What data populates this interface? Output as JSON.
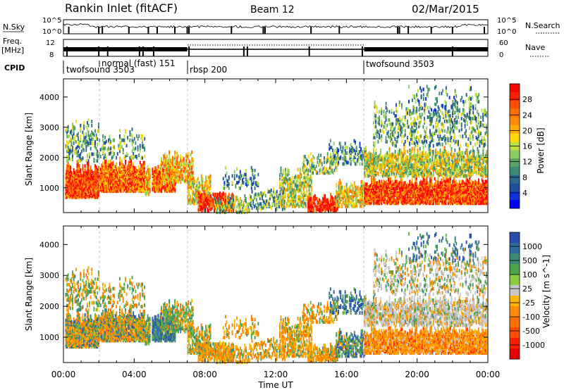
{
  "header": {
    "radar": "Rankin Inlet (fitACF)",
    "beam": "Beam 12",
    "date": "02/Mar/2015"
  },
  "status": {
    "nsky_label": "N.Sky",
    "nsky_ticks": [
      "10^5",
      "10^0"
    ],
    "nsky_right_ticks": [
      "10^5",
      "10^0"
    ],
    "nsearch_label": "N.Search",
    "freq_label": "Freq.",
    "freq_unit": "[MHz]",
    "freq_ticks": [
      "12",
      "8"
    ],
    "nave_ticks": [
      "60",
      "0"
    ],
    "nave_label": "Nave",
    "cpid_label": "CPID",
    "cpid_segments": [
      {
        "label": "twofsound 3503",
        "start_h": 0.0,
        "end_h": 2.0
      },
      {
        "label": "normal (fast) 151",
        "start_h": 2.0,
        "end_h": 7.0
      },
      {
        "label": "rbsp 200",
        "start_h": 7.0,
        "end_h": 17.0
      },
      {
        "label": "twofsound 3503",
        "start_h": 17.0,
        "end_h": 24.0
      }
    ]
  },
  "chart_data": [
    {
      "type": "heatmap",
      "title": "Power",
      "ylabel": "Slant Range [km]",
      "xlabel": "",
      "x_range_hours": [
        0,
        24
      ],
      "ylim": [
        180,
        4600
      ],
      "yticks": [
        1000,
        2000,
        3000,
        4000
      ],
      "colorbar_label": "Power [dB]",
      "colorbar_ticks": [
        "28",
        "24",
        "20",
        "16",
        "12",
        "8",
        "4"
      ],
      "colorbar_values": [
        30,
        28,
        26,
        24,
        22,
        20,
        18,
        16,
        14,
        12,
        10,
        8,
        6,
        4,
        2
      ],
      "colorbar_colors": [
        "#ff0000",
        "#ff1e00",
        "#ff4a00",
        "#ff6e00",
        "#ff8c00",
        "#ffae00",
        "#ffd800",
        "#bde03c",
        "#8ccc64",
        "#5aa064",
        "#3a8a78",
        "#2a6a8c",
        "#1e4ea0",
        "#0f30d8",
        "#0000ff"
      ]
    },
    {
      "type": "heatmap",
      "title": "Velocity",
      "ylabel": "Slant Range [km]",
      "xlabel": "Time UT",
      "x_range_hours": [
        0,
        24
      ],
      "x_tick_labels": [
        "00:00",
        "04:00",
        "08:00",
        "12:00",
        "16:00",
        "20:00",
        "00:00"
      ],
      "ylim": [
        180,
        4600
      ],
      "yticks": [
        1000,
        2000,
        3000,
        4000
      ],
      "colorbar_label": "Velocity [m s^-1]",
      "colorbar_ticks": [
        "1000",
        "500",
        "100",
        "25",
        "-25",
        "-100",
        "-500",
        "-1000"
      ],
      "colorbar_colors": [
        "#2a4eb0",
        "#2e6aa0",
        "#3a8a78",
        "#4aa44a",
        "#8acc3c",
        "#c8c8c8",
        "#ffb400",
        "#ff8c00",
        "#ff6e00",
        "#ff4a00",
        "#ff1e00",
        "#e80000"
      ]
    }
  ]
}
